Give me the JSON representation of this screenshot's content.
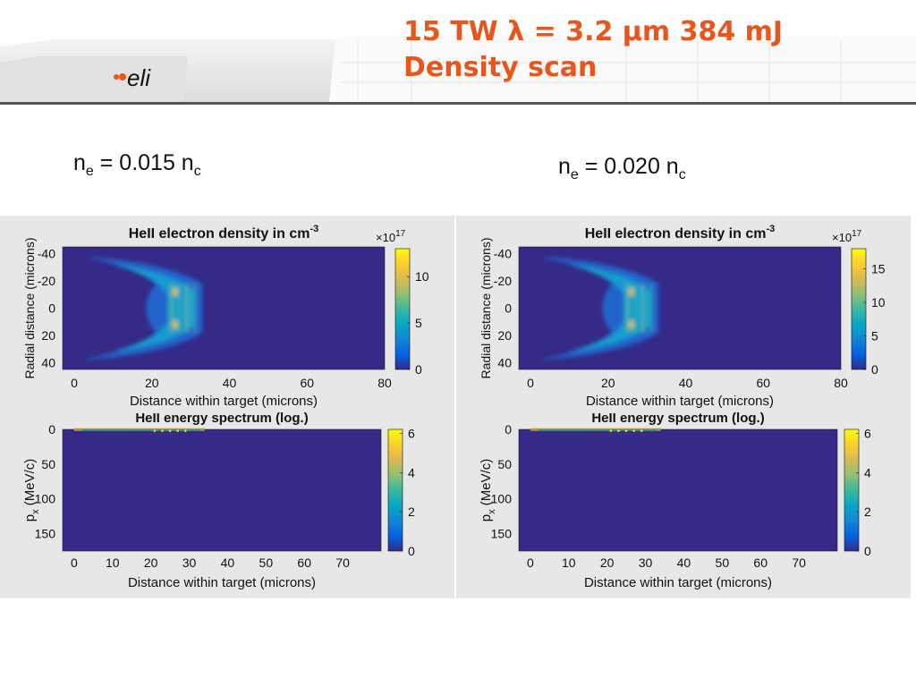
{
  "title": {
    "line1": "15 TW λ = 3.2 µm 384 mJ",
    "line2": "Density scan"
  },
  "logo": {
    "text": "eli"
  },
  "labels": [
    {
      "prefix": "n",
      "sub1": "e",
      "mid": " = 0.015 n",
      "sub2": "c"
    },
    {
      "prefix": "n",
      "sub1": "e",
      "mid": " = 0.020 n",
      "sub2": "c"
    }
  ],
  "colors": {
    "title": "#e8561b",
    "plot_bg": "#352a87",
    "panel_bg": "#e7e7e7"
  },
  "chart_data": [
    {
      "type": "heatmap",
      "title": "HeII electron density in cm",
      "title_sup": "-3",
      "xlabel": "Distance within target (microns)",
      "ylabel": "Radial distance (microns)",
      "xlim": [
        -3,
        80
      ],
      "ylim": [
        -45,
        45
      ],
      "x_ticks": [
        "0",
        "20",
        "40",
        "60",
        "80"
      ],
      "x_tick_values": [
        0,
        20,
        40,
        60,
        80
      ],
      "y_ticks": [
        "-40",
        "-20",
        "0",
        "20",
        "40"
      ],
      "y_tick_values": [
        -40,
        -20,
        0,
        20,
        40
      ],
      "colorbar": {
        "multiplier": "×10",
        "multiplier_exp": "17",
        "ticks": [
          "0",
          "5",
          "10"
        ],
        "tick_values": [
          0,
          5,
          10
        ],
        "max": 13
      },
      "colormap": "parula"
    },
    {
      "type": "heatmap",
      "title": "HeII energy spectrum (log.)",
      "xlabel": "Distance within target (microns)",
      "ylabel": "p",
      "ylabel_sub": "x",
      "ylabel_unit": " (MeV/c)",
      "xlim": [
        -3,
        80
      ],
      "ylim": [
        0,
        175
      ],
      "x_ticks": [
        "0",
        "10",
        "20",
        "30",
        "40",
        "50",
        "60",
        "70"
      ],
      "x_tick_values": [
        0,
        10,
        20,
        30,
        40,
        50,
        60,
        70
      ],
      "y_ticks": [
        "0",
        "50",
        "100",
        "150"
      ],
      "y_tick_values": [
        0,
        50,
        100,
        150
      ],
      "colorbar": {
        "ticks": [
          "0",
          "2",
          "4",
          "6"
        ],
        "tick_values": [
          0,
          2,
          4,
          6
        ],
        "max": 6.2
      },
      "colormap": "parula"
    },
    {
      "type": "heatmap",
      "title": "HeII electron density in cm",
      "title_sup": "-3",
      "xlabel": "Distance within target (microns)",
      "ylabel": "Radial distance (microns)",
      "xlim": [
        -3,
        80
      ],
      "ylim": [
        -45,
        45
      ],
      "x_ticks": [
        "0",
        "20",
        "40",
        "60",
        "80"
      ],
      "x_tick_values": [
        0,
        20,
        40,
        60,
        80
      ],
      "y_ticks": [
        "-40",
        "-20",
        "0",
        "20",
        "40"
      ],
      "y_tick_values": [
        -40,
        -20,
        0,
        20,
        40
      ],
      "colorbar": {
        "multiplier": "×10",
        "multiplier_exp": "17",
        "ticks": [
          "0",
          "5",
          "10",
          "15"
        ],
        "tick_values": [
          0,
          5,
          10,
          15
        ],
        "max": 18
      },
      "colormap": "parula"
    },
    {
      "type": "heatmap",
      "title": "HeII energy spectrum (log.)",
      "xlabel": "Distance within target (microns)",
      "ylabel": "p",
      "ylabel_sub": "x",
      "ylabel_unit": " (MeV/c)",
      "xlim": [
        -3,
        80
      ],
      "ylim": [
        0,
        175
      ],
      "x_ticks": [
        "0",
        "10",
        "20",
        "30",
        "40",
        "50",
        "60",
        "70"
      ],
      "x_tick_values": [
        0,
        10,
        20,
        30,
        40,
        50,
        60,
        70
      ],
      "y_ticks": [
        "0",
        "50",
        "100",
        "150"
      ],
      "y_tick_values": [
        0,
        50,
        100,
        150
      ],
      "colorbar": {
        "ticks": [
          "0",
          "2",
          "4",
          "6"
        ],
        "tick_values": [
          0,
          2,
          4,
          6
        ],
        "max": 6.2
      },
      "colormap": "parula"
    }
  ]
}
